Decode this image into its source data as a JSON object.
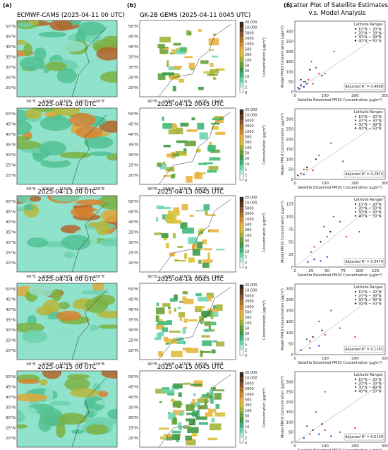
{
  "panels": {
    "a": {
      "letter": "(a)",
      "title": "ECMWF-CAMS (2025-04-11 00 UTC)"
    },
    "b": {
      "letter": "(b)",
      "title": "GK-2B GEMS (2025-04-11 0045 UTC)"
    },
    "c": {
      "letter": "(c)",
      "title_line1": "Scatter Plot of Satellite Estimates",
      "title_line2": "v.s. Model Analysis"
    }
  },
  "map_titles_model": [
    "",
    "2025-04-12 00 UTC",
    "2025-04-13 00 UTC",
    "2025-04-14 00 UTC",
    "2025-04-15 00 UTC"
  ],
  "map_titles_satellite": [
    "",
    "2025-04-12 0045 UTC",
    "2025-04-13 0045 UTC",
    "2025-04-14 0045 UTC",
    "2025-04-15 0045 UTC"
  ],
  "lat_labels": [
    "50°N",
    "45°N",
    "40°N",
    "35°N",
    "30°N",
    "25°N",
    "20°N"
  ],
  "lon_labels": [
    "90°E",
    "100°E",
    "110°E",
    "120°E",
    "130°E"
  ],
  "colorbar": {
    "label": "Concentration (μg/m³)",
    "ticks": [
      "20,000",
      "10,000",
      "5000",
      "2000",
      "1000",
      "500",
      "200",
      "100",
      "50",
      "20",
      "10",
      "5",
      "2",
      "0"
    ],
    "colors": [
      "#3b2716",
      "#5e3b1f",
      "#8b5a2b",
      "#b5722a",
      "#d88c33",
      "#e9b441",
      "#d9c23a",
      "#a4b43a",
      "#6aa23b",
      "#3f9a46",
      "#3fb97a",
      "#72d7b6",
      "#b9ede2",
      "#ffffff"
    ]
  },
  "chart_data": [
    {
      "type": "scatter",
      "xlabel": "Satellite Estaimted PM10 Concentration (μg/m³)",
      "ylabel": "Model PM10 Concentration (μg/m³)",
      "xlim": [
        0,
        300
      ],
      "ylim": [
        0,
        350
      ],
      "xticks": [
        "0",
        "100",
        "200",
        "300"
      ],
      "yticks": [
        "0",
        "50",
        "100",
        "150",
        "200",
        "250",
        "300"
      ],
      "legend_title": "Latitude Ranges",
      "legend_position": "top-right",
      "series": [
        {
          "name": "10°N ~ 20°N",
          "color": "#1f1fd6",
          "x": [
            10,
            20,
            30,
            15,
            40
          ],
          "y": [
            20,
            35,
            25,
            15,
            40
          ]
        },
        {
          "name": "20°N ~ 30°N",
          "color": "#e02020",
          "x": [
            20,
            45,
            60,
            80,
            35
          ],
          "y": [
            30,
            60,
            40,
            90,
            50
          ]
        },
        {
          "name": "30°N ~ 40°N",
          "color": "#1a8a1a",
          "x": [
            30,
            70,
            100,
            130,
            55
          ],
          "y": [
            50,
            120,
            90,
            200,
            150
          ]
        },
        {
          "name": "40°N ~ 50°N",
          "color": "#111111",
          "x": [
            20,
            50,
            90
          ],
          "y": [
            60,
            110,
            80
          ]
        }
      ],
      "annotation": "Adjusted R² = 0.4688"
    },
    {
      "type": "scatter",
      "xlabel": "Satellite Estaimted PM10 Concentration (μg/m³)",
      "ylabel": "Model PM10 Concentration (μg/m³)",
      "xlim": [
        0,
        300
      ],
      "ylim": [
        0,
        350
      ],
      "xticks": [
        "0",
        "100",
        "200",
        "300"
      ],
      "yticks": [
        "0",
        "50",
        "100",
        "150",
        "200",
        "250",
        "300"
      ],
      "legend_title": "Latitude Ranges",
      "legend_position": "top-right",
      "series": [
        {
          "name": "10°N ~ 20°N",
          "color": "#1f1fd6",
          "x": [
            10,
            20,
            30
          ],
          "y": [
            20,
            30,
            25
          ]
        },
        {
          "name": "20°N ~ 30°N",
          "color": "#e02020",
          "x": [
            20,
            40,
            60
          ],
          "y": [
            30,
            50,
            45
          ]
        },
        {
          "name": "30°N ~ 40°N",
          "color": "#1a8a1a",
          "x": [
            30,
            80,
            120,
            160
          ],
          "y": [
            50,
            120,
            180,
            90
          ]
        },
        {
          "name": "40°N ~ 50°N",
          "color": "#111111",
          "x": [
            40,
            70
          ],
          "y": [
            60,
            100
          ]
        }
      ],
      "annotation": "Adjusted R² = 0.2874"
    },
    {
      "type": "scatter",
      "xlabel": "Satellite Estaimted PM10 Concentration (μg/m³)",
      "ylabel": "Model PM10 Concentration (μg/m³)",
      "xlim": [
        0,
        140
      ],
      "ylim": [
        0,
        140
      ],
      "xticks": [
        "0",
        "25",
        "50",
        "75",
        "100",
        "125"
      ],
      "yticks": [
        "0",
        "25",
        "50",
        "75",
        "100",
        "125"
      ],
      "legend_title": "Latitude Ranges",
      "legend_position": "top-right",
      "series": [
        {
          "name": "10°N ~ 20°N",
          "color": "#1f1fd6",
          "x": [
            20,
            30,
            40,
            50
          ],
          "y": [
            10,
            15,
            12,
            20
          ]
        },
        {
          "name": "20°N ~ 30°N",
          "color": "#e02020",
          "x": [
            30,
            45,
            60,
            80
          ],
          "y": [
            40,
            80,
            100,
            60
          ]
        },
        {
          "name": "30°N ~ 40°N",
          "color": "#1a8a1a",
          "x": [
            25,
            50,
            70,
            100
          ],
          "y": [
            30,
            60,
            90,
            70
          ]
        },
        {
          "name": "40°N ~ 50°N",
          "color": "#111111",
          "x": [
            40,
            55
          ],
          "y": [
            50,
            70
          ]
        }
      ],
      "annotation": "Adjusted R² = 0.0479"
    },
    {
      "type": "scatter",
      "xlabel": "Satellite Estaimted PM10 Concentration (μg/m³)",
      "ylabel": "Model PM10 Concentration (μg/m³)",
      "xlim": [
        0,
        300
      ],
      "ylim": [
        0,
        320
      ],
      "xticks": [
        "0",
        "100",
        "200",
        "300"
      ],
      "yticks": [
        "0",
        "50",
        "100",
        "150",
        "200",
        "250",
        "300"
      ],
      "legend_title": "Latitude Ranges",
      "legend_position": "top-right",
      "series": [
        {
          "name": "10°N ~ 20°N",
          "color": "#1f1fd6",
          "x": [
            20,
            50,
            80
          ],
          "y": [
            20,
            30,
            40
          ]
        },
        {
          "name": "20°N ~ 30°N",
          "color": "#e02020",
          "x": [
            50,
            100,
            150,
            200
          ],
          "y": [
            60,
            90,
            120,
            80
          ]
        },
        {
          "name": "30°N ~ 40°N",
          "color": "#1a8a1a",
          "x": [
            40,
            80,
            120
          ],
          "y": [
            70,
            150,
            200
          ]
        },
        {
          "name": "40°N ~ 50°N",
          "color": "#111111",
          "x": [
            60,
            90
          ],
          "y": [
            80,
            110
          ]
        }
      ],
      "annotation": "Adjusted R² = 0.1191"
    },
    {
      "type": "scatter",
      "xlabel": "Satellite Estaimted PM10 Concentration (μg/m³)",
      "ylabel": "Model PM10 Concentration (μg/m³)",
      "xlim": [
        0,
        300
      ],
      "ylim": [
        0,
        350
      ],
      "xticks": [
        "0",
        "100",
        "200",
        "300"
      ],
      "yticks": [
        "0",
        "50",
        "100",
        "150",
        "200",
        "250",
        "300"
      ],
      "legend_title": "Latitude Ranges",
      "legend_position": "top-right",
      "series": [
        {
          "name": "10°N ~ 20°N",
          "color": "#1f1fd6",
          "x": [
            30,
            80,
            120
          ],
          "y": [
            20,
            40,
            30
          ]
        },
        {
          "name": "20°N ~ 30°N",
          "color": "#e02020",
          "x": [
            50,
            100,
            150,
            200
          ],
          "y": [
            40,
            60,
            50,
            70
          ]
        },
        {
          "name": "30°N ~ 40°N",
          "color": "#1a8a1a",
          "x": [
            40,
            70,
            100
          ],
          "y": [
            80,
            150,
            250
          ]
        },
        {
          "name": "40°N ~ 50°N",
          "color": "#111111",
          "x": [
            60,
            90
          ],
          "y": [
            60,
            90
          ]
        }
      ],
      "annotation": "Adjusted R² = 0.0130"
    }
  ]
}
